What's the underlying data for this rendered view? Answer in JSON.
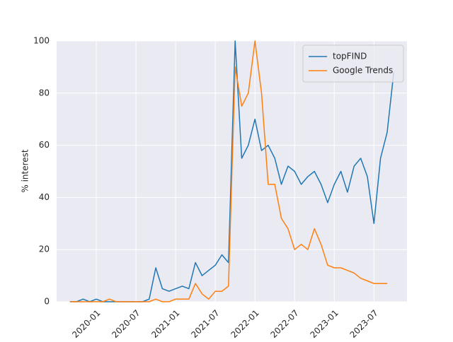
{
  "chart_data": {
    "type": "line",
    "ylabel": "% interest",
    "x": [
      "2019-09",
      "2019-10",
      "2019-11",
      "2019-12",
      "2020-01",
      "2020-02",
      "2020-03",
      "2020-04",
      "2020-05",
      "2020-06",
      "2020-07",
      "2020-08",
      "2020-09",
      "2020-10",
      "2020-11",
      "2020-12",
      "2021-01",
      "2021-02",
      "2021-03",
      "2021-04",
      "2021-05",
      "2021-06",
      "2021-07",
      "2021-08",
      "2021-09",
      "2021-10",
      "2021-11",
      "2021-12",
      "2022-01",
      "2022-02",
      "2022-03",
      "2022-04",
      "2022-05",
      "2022-06",
      "2022-07",
      "2022-08",
      "2022-09",
      "2022-10",
      "2022-11",
      "2022-12",
      "2023-01",
      "2023-02",
      "2023-03",
      "2023-04",
      "2023-05",
      "2023-06",
      "2023-07",
      "2023-08",
      "2023-09",
      "2023-10"
    ],
    "series": [
      {
        "name": "topFIND",
        "color": "#1f77b4",
        "values": [
          0,
          0,
          1,
          0,
          1,
          0,
          0,
          0,
          0,
          0,
          0,
          0,
          1,
          13,
          5,
          4,
          5,
          6,
          5,
          15,
          10,
          12,
          14,
          18,
          15,
          100,
          55,
          60,
          70,
          58,
          60,
          55,
          45,
          52,
          50,
          45,
          48,
          50,
          45,
          38,
          45,
          50,
          42,
          52,
          55,
          48,
          30,
          55,
          65,
          88
        ]
      },
      {
        "name": "Google Trends",
        "color": "#ff7f0e",
        "values": [
          0,
          0,
          0,
          0,
          0,
          0,
          1,
          0,
          0,
          0,
          0,
          0,
          0,
          1,
          0,
          0,
          1,
          1,
          1,
          7,
          3,
          1,
          4,
          4,
          6,
          90,
          75,
          80,
          100,
          80,
          45,
          45,
          32,
          28,
          20,
          22,
          20,
          28,
          22,
          14,
          13,
          13,
          12,
          11,
          9,
          8,
          7,
          7,
          7,
          null
        ]
      }
    ],
    "xlim": [
      "2019-07",
      "2023-12"
    ],
    "xticks": [
      "2020-01",
      "2020-07",
      "2021-01",
      "2021-07",
      "2022-01",
      "2022-07",
      "2023-01",
      "2023-07"
    ],
    "ylim": [
      0,
      100
    ],
    "yticks": [
      0,
      20,
      40,
      60,
      80,
      100
    ],
    "grid": true,
    "legend": "upper right"
  }
}
